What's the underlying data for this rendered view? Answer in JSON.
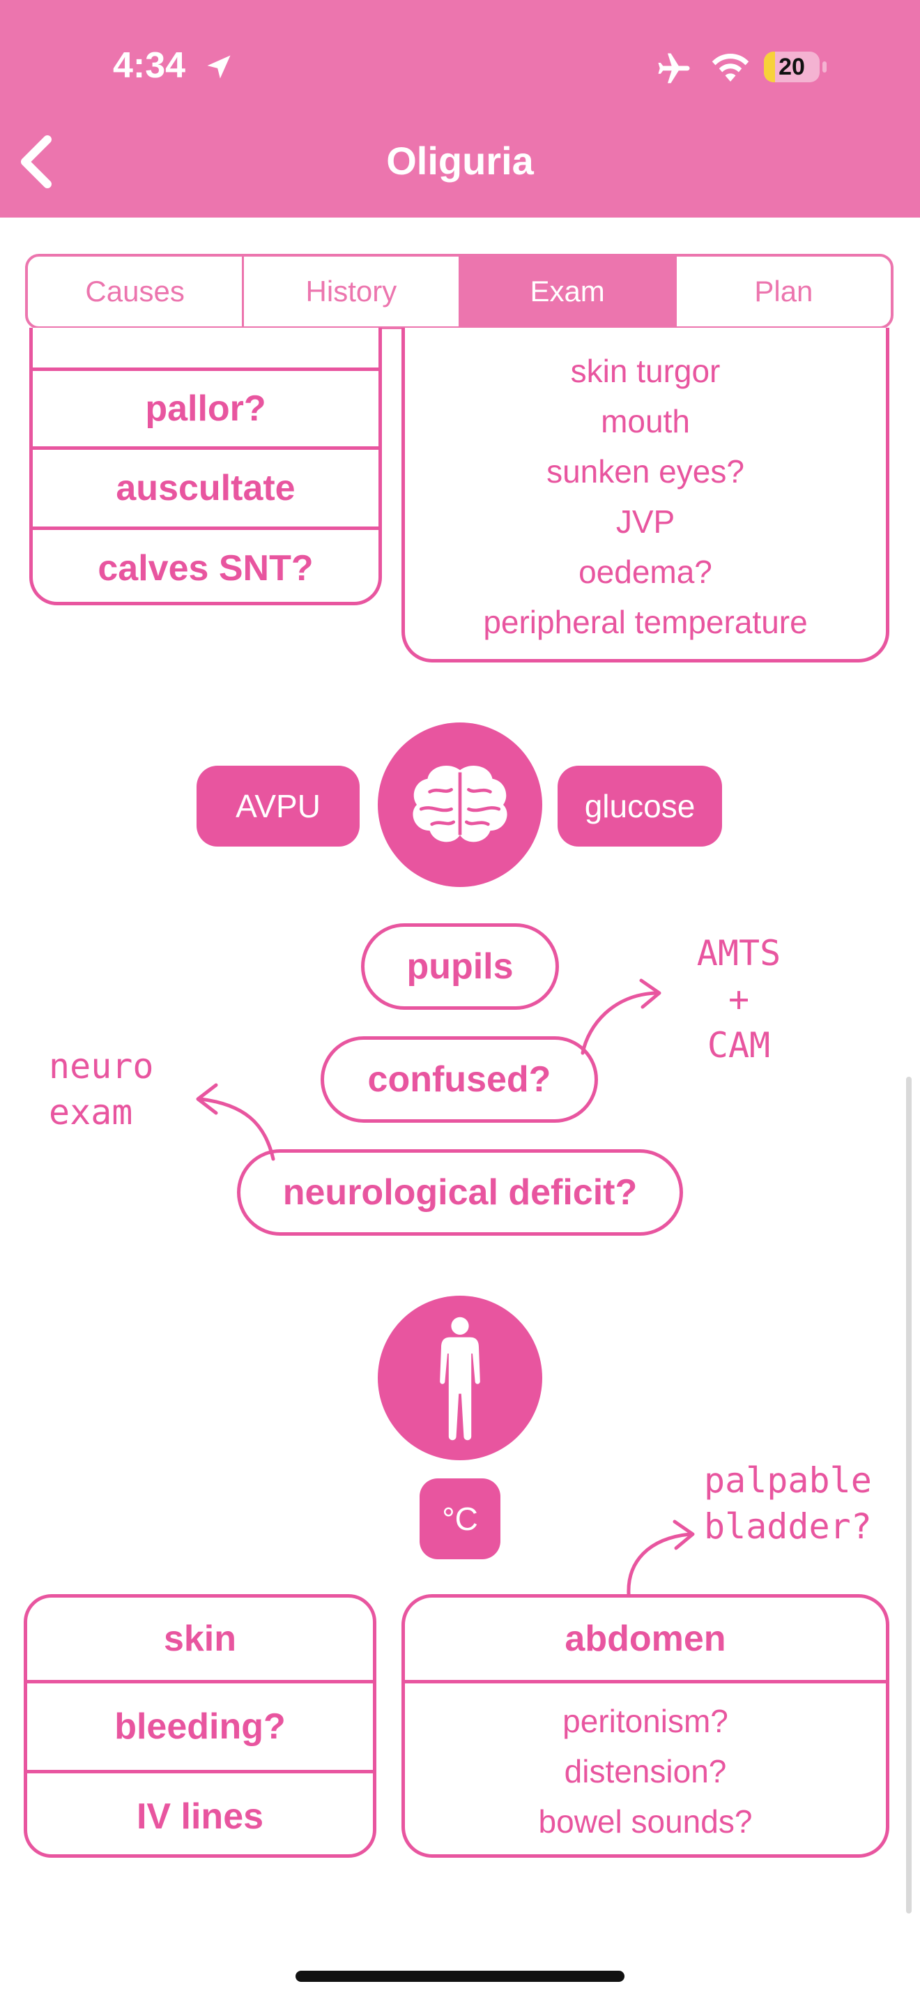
{
  "status_bar": {
    "time": "4:34",
    "battery": "20",
    "battery_level": 0.2
  },
  "nav": {
    "title": "Oliguria"
  },
  "tabs": [
    {
      "label": "Causes"
    },
    {
      "label": "History"
    },
    {
      "label": "Exam"
    },
    {
      "label": "Plan"
    }
  ],
  "left_top_box": {
    "rows": [
      "pallor?",
      "auscultate",
      "calves SNT?"
    ]
  },
  "right_top_box": {
    "lines": [
      "skin turgor",
      "mouth",
      "sunken eyes?",
      "JVP",
      "oedema?",
      "peripheral temperature"
    ]
  },
  "neuro": {
    "avpu": "AVPU",
    "glucose": "glucose",
    "pupils": "pupils",
    "confused": "confused?",
    "deficit": "neurological deficit?",
    "note_amts": [
      "AMTS",
      "+",
      "CAM"
    ],
    "note_neuro": [
      "neuro",
      "exam"
    ]
  },
  "body": {
    "temp": "°C",
    "note_bladder": [
      "palpable",
      "bladder?"
    ]
  },
  "skin_box": {
    "rows": [
      "skin",
      "bleeding?",
      "IV lines"
    ]
  },
  "abdomen_box": {
    "title": "abdomen",
    "lines": [
      "peritonism?",
      "distension?",
      "bowel sounds?"
    ]
  }
}
